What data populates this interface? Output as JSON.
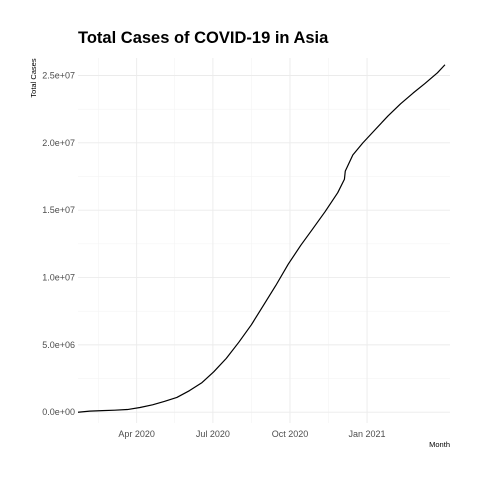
{
  "chart_data": {
    "type": "line",
    "title": "Total Cases of COVID-19 in Asia",
    "xlabel": "Month",
    "ylabel": "Total Cases",
    "grid": true,
    "xlim": [
      "2020-01-22",
      "2021-04-10"
    ],
    "ylim": [
      -800000,
      26300000
    ],
    "x_ticks": [
      {
        "date": "2020-04-01",
        "label": "Apr 2020"
      },
      {
        "date": "2020-07-01",
        "label": "Jul 2020"
      },
      {
        "date": "2020-10-01",
        "label": "Oct 2020"
      },
      {
        "date": "2021-01-01",
        "label": "Jan 2021"
      }
    ],
    "y_ticks": [
      {
        "value": 0,
        "label": "0.0e+00"
      },
      {
        "value": 5000000,
        "label": "5.0e+06"
      },
      {
        "value": 10000000,
        "label": "1.0e+07"
      },
      {
        "value": 15000000,
        "label": "1.5e+07"
      },
      {
        "value": 20000000,
        "label": "2.0e+07"
      },
      {
        "value": 25000000,
        "label": "2.5e+07"
      }
    ],
    "x": [
      "2020-01-22",
      "2020-02-05",
      "2020-02-20",
      "2020-03-06",
      "2020-03-21",
      "2020-04-05",
      "2020-04-20",
      "2020-05-04",
      "2020-05-19",
      "2020-06-03",
      "2020-06-18",
      "2020-07-02",
      "2020-07-17",
      "2020-08-01",
      "2020-08-16",
      "2020-08-30",
      "2020-09-14",
      "2020-09-29",
      "2020-10-14",
      "2020-10-28",
      "2020-11-12",
      "2020-11-27",
      "2020-12-05",
      "2020-12-06",
      "2020-12-15",
      "2020-12-27",
      "2021-01-11",
      "2021-01-26",
      "2021-02-10",
      "2021-02-25",
      "2021-03-11",
      "2021-03-26",
      "2021-04-04"
    ],
    "series": [
      {
        "values": [
          0,
          80000,
          120000,
          150000,
          200000,
          350000,
          550000,
          800000,
          1100000,
          1600000,
          2200000,
          3000000,
          4000000,
          5200000,
          6500000,
          7900000,
          9400000,
          11000000,
          12400000,
          13600000,
          14900000,
          16300000,
          17300000,
          17900000,
          19100000,
          20000000,
          21000000,
          22000000,
          22900000,
          23700000,
          24400000,
          25200000,
          25800000
        ]
      }
    ]
  }
}
